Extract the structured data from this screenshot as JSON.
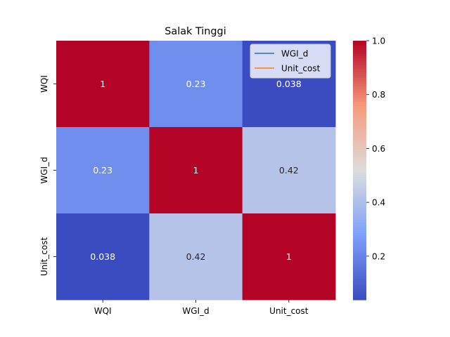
{
  "chart_data": {
    "type": "heatmap",
    "title": "Salak Tinggi",
    "xlabel": "",
    "ylabel": "",
    "x_categories": [
      "WQI",
      "WGI_d",
      "Unit_cost"
    ],
    "y_categories": [
      "WQI",
      "WGI_d",
      "Unit_cost"
    ],
    "values": [
      [
        1,
        0.23,
        0.038
      ],
      [
        0.23,
        1,
        0.42
      ],
      [
        0.038,
        0.42,
        1
      ]
    ],
    "annotations": [
      [
        "1",
        "0.23",
        "0.038"
      ],
      [
        "0.23",
        "1",
        "0.42"
      ],
      [
        "0.038",
        "0.42",
        "1"
      ]
    ],
    "colormap": "coolwarm",
    "colorbar": {
      "range": [
        0.038,
        1.0
      ],
      "ticks": [
        0.2,
        0.4,
        0.6,
        0.8,
        1.0
      ],
      "tick_labels": [
        "0.2",
        "0.4",
        "0.6",
        "0.8",
        "1.0"
      ]
    },
    "legend": {
      "placement": "top-right",
      "entries": [
        {
          "label": "WGI_d",
          "color": "#1f77b4"
        },
        {
          "label": "Unit_cost",
          "color": "#ff7f0e"
        }
      ]
    },
    "grid": false
  }
}
